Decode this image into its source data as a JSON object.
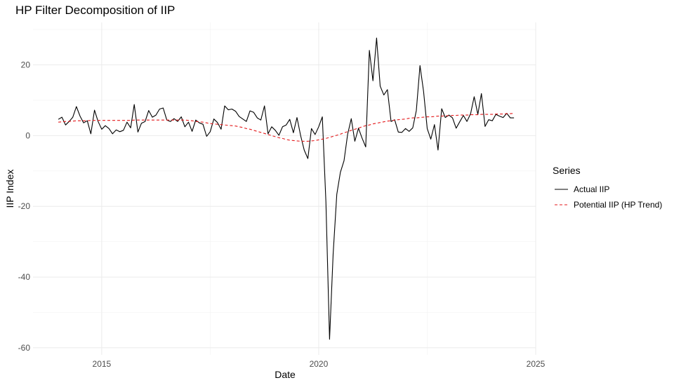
{
  "chart_data": {
    "type": "line",
    "title": "HP Filter Decomposition of IIP",
    "xlabel": "Date",
    "ylabel": "IIP Index",
    "xlim": [
      "2013-06-01",
      "2025-01-01"
    ],
    "ylim": [
      -62,
      32
    ],
    "x_ticks": [
      {
        "value": "2015-01-01",
        "label": "2015"
      },
      {
        "value": "2020-01-01",
        "label": "2020"
      },
      {
        "value": "2025-01-01",
        "label": "2025"
      }
    ],
    "y_ticks": [
      -60,
      -40,
      -20,
      0,
      20
    ],
    "grid": true,
    "legend": {
      "title": "Series",
      "position": "right"
    },
    "start": "2014-01",
    "frequency": "monthly",
    "series": [
      {
        "name": "Actual IIP",
        "color": "#000000",
        "dash": "solid",
        "values": [
          4.6,
          5.2,
          3.0,
          4.0,
          5.2,
          8.2,
          5.5,
          3.6,
          4.2,
          0.5,
          7.2,
          4.0,
          1.8,
          2.8,
          2.0,
          0.5,
          1.6,
          1.1,
          1.5,
          3.8,
          2.2,
          8.8,
          1.0,
          3.5,
          4.0,
          7.1,
          5.2,
          5.8,
          7.5,
          7.8,
          4.4,
          4.0,
          4.8,
          4.0,
          5.3,
          2.5,
          3.8,
          1.2,
          4.4,
          3.6,
          3.2,
          -0.2,
          1.1,
          4.7,
          3.7,
          1.8,
          8.4,
          7.3,
          7.5,
          6.9,
          5.4,
          4.7,
          4.0,
          7.0,
          6.6,
          5.0,
          4.4,
          8.4,
          0.5,
          2.5,
          1.5,
          0.1,
          2.5,
          3.0,
          4.6,
          0.8,
          5.1,
          0.0,
          -4.1,
          -6.5,
          2.0,
          0.3,
          2.5,
          5.3,
          -18.7,
          -57.6,
          -33.5,
          -16.6,
          -10.4,
          -7.1,
          0.3,
          4.8,
          -1.6,
          2.1,
          -0.7,
          -3.2,
          24.1,
          15.5,
          27.6,
          14.0,
          11.5,
          13.0,
          4.0,
          4.5,
          1.0,
          0.9,
          2.0,
          1.2,
          2.2,
          7.1,
          19.8,
          12.5,
          2.0,
          -1.0,
          3.1,
          -4.1,
          7.6,
          5.1,
          5.8,
          5.0,
          2.1,
          3.9,
          5.7,
          4.0,
          6.2,
          11.0,
          6.0,
          11.9,
          2.6,
          4.5,
          4.2,
          6.0,
          5.5,
          5.1,
          6.3,
          5.0,
          5.0
        ]
      },
      {
        "name": "Potential IIP (HP Trend)",
        "color": "#e41a1c",
        "dash": "dashed",
        "values": [
          3.8,
          3.9,
          4.0,
          4.0,
          4.1,
          4.2,
          4.2,
          4.2,
          4.2,
          4.3,
          4.3,
          4.3,
          4.3,
          4.3,
          4.3,
          4.3,
          4.3,
          4.3,
          4.3,
          4.3,
          4.3,
          4.4,
          4.4,
          4.4,
          4.4,
          4.4,
          4.4,
          4.4,
          4.4,
          4.4,
          4.4,
          4.4,
          4.4,
          4.4,
          4.4,
          4.4,
          4.3,
          4.2,
          4.0,
          3.9,
          3.8,
          3.6,
          3.4,
          3.3,
          3.2,
          3.1,
          3.0,
          2.9,
          2.8,
          2.7,
          2.5,
          2.3,
          2.0,
          1.8,
          1.5,
          1.2,
          0.9,
          0.6,
          0.3,
          0.0,
          -0.3,
          -0.6,
          -0.8,
          -1.1,
          -1.3,
          -1.4,
          -1.5,
          -1.6,
          -1.6,
          -1.6,
          -1.5,
          -1.4,
          -1.2,
          -1.0,
          -0.8,
          -0.5,
          -0.2,
          0.1,
          0.4,
          0.8,
          1.1,
          1.5,
          1.8,
          2.1,
          2.5,
          2.8,
          3.0,
          3.3,
          3.5,
          3.7,
          3.9,
          4.1,
          4.2,
          4.4,
          4.5,
          4.6,
          4.7,
          4.9,
          5.0,
          5.0,
          5.1,
          5.2,
          5.3,
          5.3,
          5.4,
          5.5,
          5.5,
          5.6,
          5.6,
          5.7,
          5.7,
          5.8,
          5.8,
          5.8,
          5.9,
          5.9,
          5.9,
          6.0,
          6.0,
          6.0,
          6.0,
          6.1,
          6.1,
          6.1,
          6.2,
          6.2,
          6.3
        ]
      }
    ]
  }
}
